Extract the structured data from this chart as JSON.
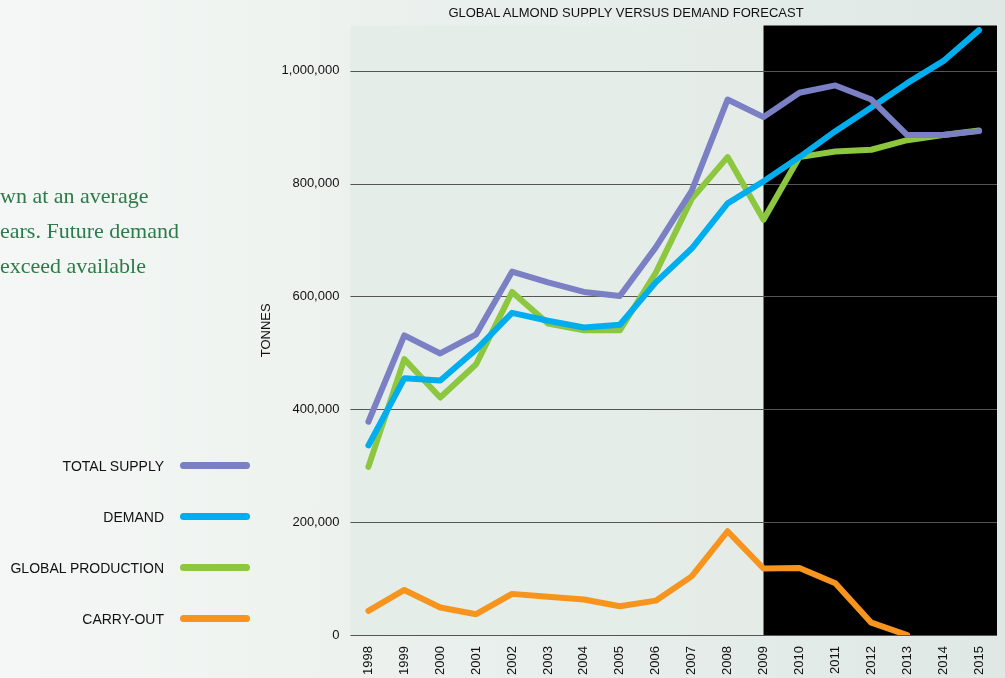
{
  "chart_data": {
    "type": "line",
    "title": "GLOBAL ALMOND SUPPLY VERSUS DEMAND FORECAST",
    "ylabel": "TONNES",
    "categories": [
      "1998",
      "1999",
      "2000",
      "2001",
      "2002",
      "2003",
      "2004",
      "2005",
      "2006",
      "2007",
      "2008",
      "2009",
      "2010",
      "2011",
      "2012",
      "2013",
      "2014",
      "2015"
    ],
    "series": [
      {
        "name": "TOTAL SUPPLY",
        "color": "#7b7fc4",
        "values": [
          378000,
          531000,
          499000,
          533000,
          644000,
          625000,
          608000,
          601000,
          687000,
          787000,
          949000,
          918000,
          961000,
          974000,
          949000,
          886000,
          886000,
          893000
        ]
      },
      {
        "name": "DEMAND",
        "color": "#00aeef",
        "values": [
          336000,
          455000,
          451000,
          506000,
          571000,
          557000,
          545000,
          550000,
          625000,
          685000,
          765000,
          804000,
          847000,
          893000,
          935000,
          978000,
          1017000,
          1072000
        ]
      },
      {
        "name": "GLOBAL PRODUCTION",
        "color": "#8dc63f",
        "values": [
          298000,
          489000,
          421000,
          480000,
          608000,
          552000,
          540000,
          540000,
          642000,
          773000,
          847000,
          736000,
          847000,
          857000,
          860000,
          877000,
          886000,
          894000
        ]
      },
      {
        "name": "CARRY-OUT",
        "color": "#f7941d",
        "values": [
          43000,
          80000,
          49000,
          37000,
          73000,
          68000,
          63000,
          51000,
          61000,
          104000,
          184000,
          118000,
          119000,
          92000,
          22000,
          0,
          null,
          null
        ]
      }
    ],
    "ylim": [
      0,
      1080000
    ],
    "yticks": [
      0,
      {
        "value": 200000,
        "label": "200,000"
      },
      {
        "value": 400000,
        "label": "400,000"
      },
      {
        "value": 600000,
        "label": "600,000"
      },
      {
        "value": 800000,
        "label": "800,000"
      },
      {
        "value": 1000000,
        "label": "1,000,000"
      }
    ],
    "bands": [
      {
        "axis": "x",
        "from": "2009",
        "to": "2015",
        "color": "#000000"
      }
    ],
    "grid": "y",
    "legend": "left",
    "marker": "none",
    "line_style": "solid",
    "annotations": [
      "wn at an average",
      "ears. Future demand",
      "exceed available"
    ]
  }
}
